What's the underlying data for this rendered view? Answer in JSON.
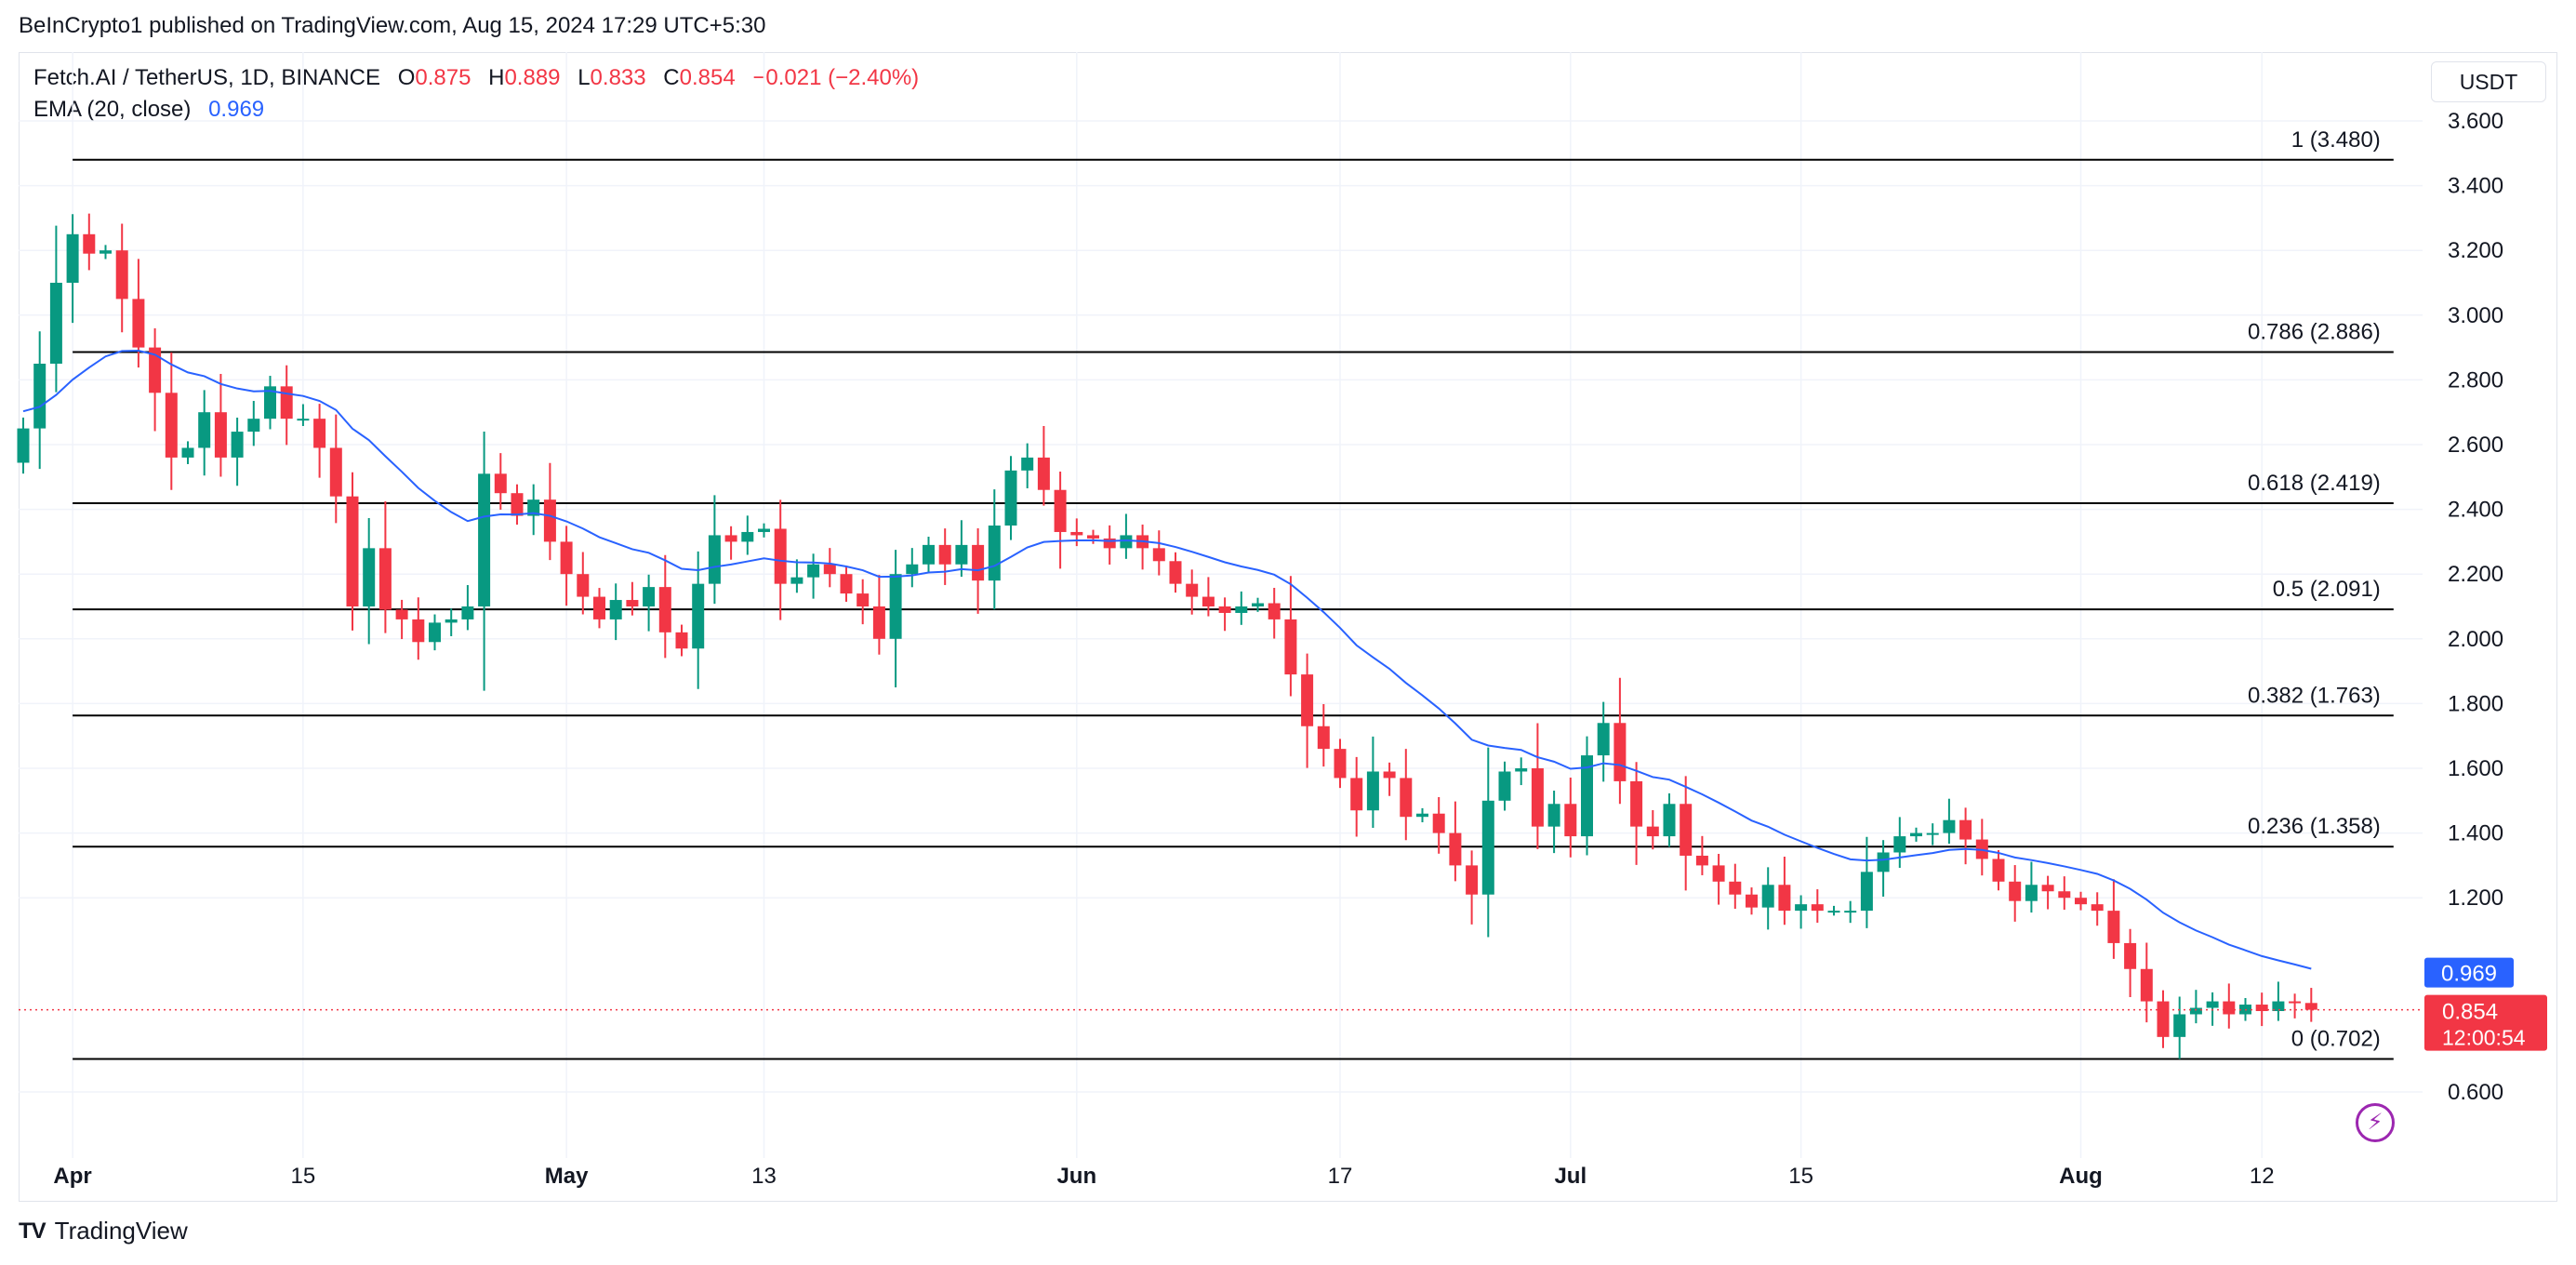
{
  "header": {
    "published": "BeInCrypto1 published on TradingView.com, Aug 15, 2024 17:29 UTC+5:30"
  },
  "legend": {
    "symbol": "Fetch.AI / TetherUS, 1D, BINANCE",
    "o_label": "O",
    "o_value": "0.875",
    "h_label": "H",
    "h_value": "0.889",
    "l_label": "L",
    "l_value": "0.833",
    "c_label": "C",
    "c_value": "0.854",
    "change": "−0.021 (−2.40%)",
    "ema_label": "EMA (20, close)",
    "ema_value": "0.969"
  },
  "currency_button": "USDT",
  "footer": {
    "brand": "TradingView"
  },
  "colors": {
    "up": "#089981",
    "down": "#f23645",
    "ema": "#2962ff",
    "fib": "#000000",
    "grid": "#f0f3fa"
  },
  "chart_data": {
    "type": "candlestick",
    "symbol": "FETUSDT",
    "timeframe": "1D",
    "y_ticks": [
      "3.600",
      "3.400",
      "3.200",
      "3.000",
      "2.800",
      "2.600",
      "2.400",
      "2.200",
      "2.000",
      "1.800",
      "1.600",
      "1.400",
      "1.200",
      "0.600"
    ],
    "ylim": [
      0.55,
      3.62
    ],
    "x_ticks": [
      {
        "label": "Apr",
        "day": 3,
        "bold": true
      },
      {
        "label": "15",
        "day": 17,
        "bold": false
      },
      {
        "label": "May",
        "day": 33,
        "bold": true
      },
      {
        "label": "13",
        "day": 45,
        "bold": false
      },
      {
        "label": "Jun",
        "day": 64,
        "bold": true
      },
      {
        "label": "17",
        "day": 80,
        "bold": false
      },
      {
        "label": "Jul",
        "day": 94,
        "bold": true
      },
      {
        "label": "15",
        "day": 108,
        "bold": false
      },
      {
        "label": "Aug",
        "day": 125,
        "bold": true
      },
      {
        "label": "12",
        "day": 136,
        "bold": false
      }
    ],
    "fib_levels": [
      {
        "label": "1 (3.480)",
        "value": 3.48
      },
      {
        "label": "0.786 (2.886)",
        "value": 2.886
      },
      {
        "label": "0.618 (2.419)",
        "value": 2.419
      },
      {
        "label": "0.5 (2.091)",
        "value": 2.091
      },
      {
        "label": "0.382 (1.763)",
        "value": 1.763
      },
      {
        "label": "0.236 (1.358)",
        "value": 1.358
      },
      {
        "label": "0 (0.702)",
        "value": 0.702
      }
    ],
    "fib_x_range": [
      3,
      144
    ],
    "last_price": {
      "value": 0.854,
      "label": "0.854",
      "countdown": "12:00:54"
    },
    "ema_last": {
      "value": 0.969,
      "label": "0.969"
    },
    "close": [
      2.65,
      2.85,
      3.1,
      3.25,
      3.19,
      3.2,
      3.05,
      2.9,
      2.76,
      2.56,
      2.59,
      2.7,
      2.56,
      2.64,
      2.68,
      2.78,
      2.68,
      2.68,
      2.59,
      2.44,
      2.1,
      2.28,
      2.09,
      2.06,
      1.99,
      2.05,
      2.06,
      2.1,
      2.51,
      2.45,
      2.38,
      2.43,
      2.3,
      2.2,
      2.13,
      2.06,
      2.12,
      2.1,
      2.16,
      2.02,
      1.97,
      2.17,
      2.32,
      2.3,
      2.33,
      2.34,
      2.17,
      2.19,
      2.23,
      2.2,
      2.14,
      2.1,
      2.0,
      2.2,
      2.23,
      2.29,
      2.23,
      2.29,
      2.18,
      2.35,
      2.52,
      2.56,
      2.46,
      2.33,
      2.32,
      2.31,
      2.28,
      2.32,
      2.28,
      2.24,
      2.17,
      2.13,
      2.1,
      2.08,
      2.1,
      2.11,
      2.06,
      1.89,
      1.73,
      1.66,
      1.57,
      1.47,
      1.59,
      1.57,
      1.45,
      1.46,
      1.4,
      1.3,
      1.21,
      1.5,
      1.59,
      1.6,
      1.42,
      1.49,
      1.39,
      1.64,
      1.74,
      1.56,
      1.42,
      1.39,
      1.49,
      1.33,
      1.3,
      1.25,
      1.21,
      1.17,
      1.24,
      1.16,
      1.18,
      1.16,
      1.16,
      1.16,
      1.28,
      1.34,
      1.39,
      1.4,
      1.4,
      1.44,
      1.38,
      1.32,
      1.25,
      1.19,
      1.24,
      1.22,
      1.2,
      1.18,
      1.16,
      1.06,
      0.98,
      0.88,
      0.77,
      0.84,
      0.86,
      0.88,
      0.84,
      0.87,
      0.85,
      0.88,
      0.875,
      0.854
    ]
  }
}
